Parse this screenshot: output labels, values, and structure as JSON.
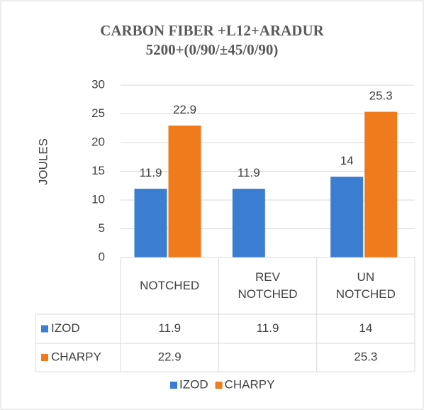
{
  "chart_data": {
    "type": "bar",
    "title": "CARBON FIBER +L12+ARADUR 5200+(0/90/±45/0/90)",
    "y_label": "JOULES",
    "categories": [
      "NOTCHED",
      "REV NOTCHED",
      "UN NOTCHED"
    ],
    "series": [
      {
        "name": "IZOD",
        "color": "#3b7dd0",
        "values": [
          11.9,
          11.9,
          14
        ]
      },
      {
        "name": "CHARPY",
        "color": "#f07b1d",
        "values": [
          22.9,
          null,
          25.3
        ]
      }
    ],
    "ylim": [
      0,
      30
    ],
    "yticks": [
      0,
      5,
      10,
      15,
      20,
      25,
      30
    ],
    "grid": true,
    "data_table": true,
    "legend": "bottom"
  }
}
